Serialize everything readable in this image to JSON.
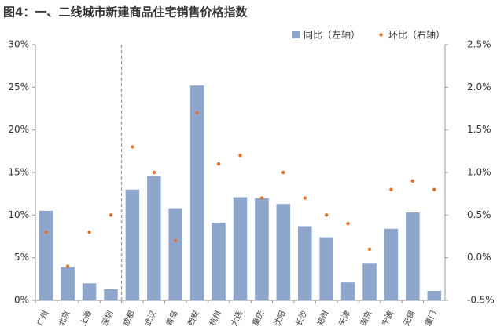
{
  "chart_data": {
    "type": "bar",
    "title": "图4：一、二线城市新建商品住宅销售价格指数",
    "categories": [
      "广州",
      "北京",
      "上海",
      "深圳",
      "成都",
      "武汉",
      "青岛",
      "西安",
      "杭州",
      "大连",
      "重庆",
      "沈阳",
      "长沙",
      "郑州",
      "天津",
      "南京",
      "宁波",
      "无锡",
      "厦门"
    ],
    "series": [
      {
        "name": "同比（左轴）",
        "type": "bar",
        "color": "#8fa6cc",
        "values": [
          10.5,
          3.9,
          2.0,
          1.3,
          13.0,
          14.6,
          10.8,
          25.2,
          9.1,
          12.1,
          12.0,
          11.3,
          8.7,
          7.4,
          2.1,
          4.3,
          8.4,
          10.3,
          1.1
        ]
      },
      {
        "name": "环比（右轴）",
        "type": "scatter",
        "axis": "y2",
        "color": "#e0702a",
        "values": [
          0.3,
          -0.1,
          0.3,
          0.5,
          1.3,
          1.0,
          0.2,
          1.7,
          1.1,
          1.2,
          0.7,
          1.0,
          0.7,
          0.5,
          0.4,
          0.1,
          0.8,
          0.9,
          0.8
        ]
      }
    ],
    "ylim": [
      0,
      30
    ],
    "yticks": [
      {
        "value": 0,
        "label": "0%"
      },
      {
        "value": 5,
        "label": "5%"
      },
      {
        "value": 10,
        "label": "10%"
      },
      {
        "value": 15,
        "label": "15%"
      },
      {
        "value": 20,
        "label": "20%"
      },
      {
        "value": 25,
        "label": "25%"
      },
      {
        "value": 30,
        "label": "30%"
      }
    ],
    "y2lim": [
      -0.5,
      2.5
    ],
    "y2ticks": [
      {
        "value": -0.5,
        "label": "-0.5%"
      },
      {
        "value": 0,
        "label": "0.0%"
      },
      {
        "value": 0.5,
        "label": "0.5%"
      },
      {
        "value": 1,
        "label": "1.0%"
      },
      {
        "value": 1.5,
        "label": "1.5%"
      },
      {
        "value": 2,
        "label": "2.0%"
      },
      {
        "value": 2.5,
        "label": "2.5%"
      }
    ],
    "legend": "top-right"
  }
}
